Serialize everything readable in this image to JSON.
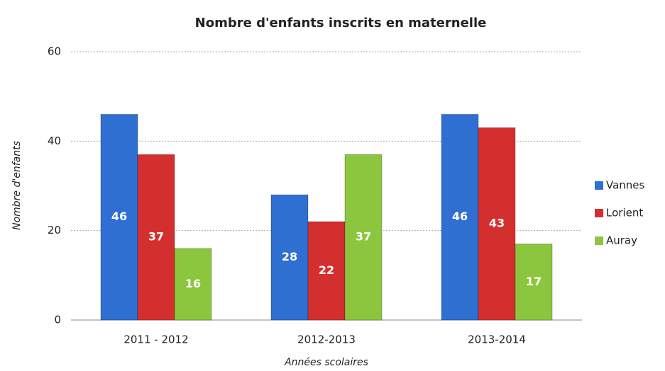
{
  "chart_data": {
    "type": "bar",
    "title": "Nombre d'enfants inscrits en maternelle",
    "x_label": "Années scolaires",
    "y_label": "Nombre d'enfants",
    "categories": [
      "2011 - 2012",
      "2012-2013",
      "2013-2014"
    ],
    "series": [
      {
        "name": "Vannes",
        "color": "#2f6fd1",
        "values": [
          46,
          28,
          46
        ]
      },
      {
        "name": "Lorient",
        "color": "#d42f2f",
        "values": [
          37,
          22,
          43
        ]
      },
      {
        "name": "Auray",
        "color": "#8cc63f",
        "values": [
          16,
          37,
          17
        ]
      }
    ],
    "ylim": [
      0,
      60
    ],
    "yticks": [
      0,
      20,
      40,
      60
    ],
    "grid": true,
    "legend": "right"
  }
}
